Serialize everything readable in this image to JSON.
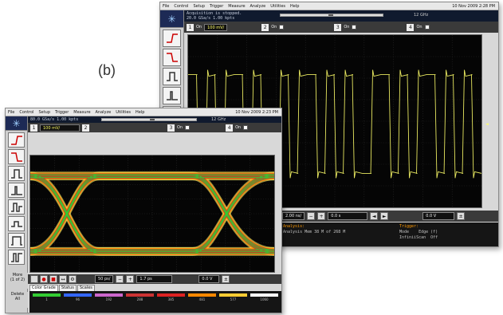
{
  "figure_label": "(b)",
  "back_scope": {
    "menu": [
      "File",
      "Control",
      "Setup",
      "Trigger",
      "Measure",
      "Analyze",
      "Utilities",
      "Help"
    ],
    "date": "10 Nov 2009  2:28 PM",
    "acq_line1": "Acquisition is stopped.",
    "acq_line2": "20.0 GSa/s   1.00 kpts",
    "rate": "12 GHz",
    "ch1": "1",
    "ch1_val": "100 mV/",
    "ch1_on": "On",
    "ch2": "2",
    "ch2_on": "On",
    "ch3": "3",
    "ch3_on": "On",
    "ch4": "4",
    "ch4_on": "On",
    "timebase": "2.00 ns/",
    "delay": "0.0 s",
    "trig_level": "0.0 V",
    "info_left_hdr": "Analysis:",
    "info_left": "Analysis Mem  38 M of 268 M",
    "info_right_hdr": "Trigger:",
    "info_mode_label": "Mode",
    "info_mode_val": "Edge (f)",
    "info_scan_label": "InfiniiScan",
    "info_scan_val": "Off"
  },
  "front_scope": {
    "menu": [
      "File",
      "Control",
      "Setup",
      "Trigger",
      "Measure",
      "Analyze",
      "Utilities",
      "Help"
    ],
    "date": "10 Nov 2009  2:23 PM",
    "acq_line": "80.0 GSa/s   1.00 kpts",
    "rate": "12 GHz",
    "ch1": "1",
    "ch1_val": "100 mV/",
    "ch2": "2",
    "ch3": "3",
    "ch3_on": "On",
    "ch4": "4",
    "ch4_on": "On",
    "timebase": "50 ps/",
    "delay": "1.7 ps",
    "trig_level": "0.0 V",
    "side_btn1": "More\n(1 of 2)",
    "side_btn2": "Delete\nAll",
    "tabs": [
      "Color Grade",
      "Status",
      "Scales"
    ],
    "grade_colors": [
      "#33cc33",
      "#3366ff",
      "#cc66cc",
      "#cc3333",
      "#dd2222",
      "#ff8800",
      "#ffcc33",
      "#ffffff"
    ],
    "grade_counts": [
      "1",
      "96",
      "192",
      "288",
      "385",
      "481",
      "577",
      "1060"
    ]
  }
}
